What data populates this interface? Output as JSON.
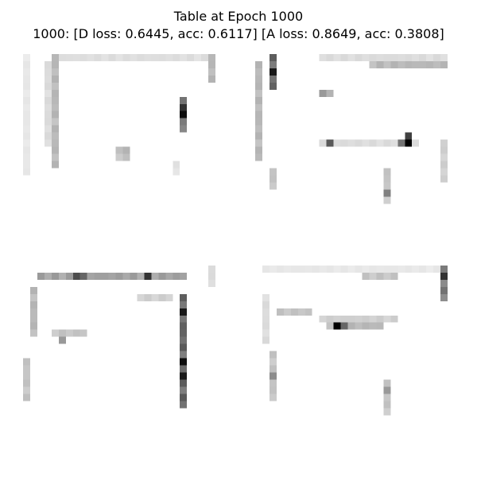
{
  "figure": {
    "title": "Table at Epoch 1000",
    "subtitle": "1000: [D loss: 0.6445, acc: 0.6117]  [A loss: 0.8649, acc: 0.3808]"
  },
  "colormap": "binary",
  "samples": [
    {
      "strokes": [
        {
          "kind": "h",
          "row": 0,
          "c0": 5,
          "c1": 26,
          "v": 0.14
        },
        {
          "kind": "v",
          "col": 26,
          "r0": 0,
          "r1": 3,
          "v": 0.3
        },
        {
          "kind": "v",
          "col": 4,
          "r0": 0,
          "r1": 15,
          "v": 0.3
        },
        {
          "kind": "v",
          "col": 0,
          "r0": 0,
          "r1": 16,
          "v": 0.1
        },
        {
          "kind": "v",
          "col": 3,
          "r0": 1,
          "r1": 12,
          "v": 0.15
        },
        {
          "kind": "v",
          "col": 22,
          "r0": 6,
          "r1": 10,
          "v": 0.55
        },
        {
          "kind": "p",
          "row": 8,
          "col": 22,
          "v": 0.95
        },
        {
          "kind": "p",
          "row": 7,
          "col": 22,
          "v": 0.8
        },
        {
          "kind": "p",
          "row": 13,
          "col": 13,
          "v": 0.25
        },
        {
          "kind": "p",
          "row": 13,
          "col": 14,
          "v": 0.3
        },
        {
          "kind": "p",
          "row": 14,
          "col": 13,
          "v": 0.2
        },
        {
          "kind": "p",
          "row": 14,
          "col": 14,
          "v": 0.25
        },
        {
          "kind": "p",
          "row": 15,
          "col": 21,
          "v": 0.12
        },
        {
          "kind": "p",
          "row": 16,
          "col": 21,
          "v": 0.1
        }
      ]
    },
    {
      "strokes": [
        {
          "kind": "h",
          "row": 0,
          "c0": 9,
          "c1": 26,
          "v": 0.15
        },
        {
          "kind": "h",
          "row": 1,
          "c0": 16,
          "c1": 26,
          "v": 0.3
        },
        {
          "kind": "v",
          "col": 2,
          "r0": 0,
          "r1": 4,
          "v": 0.65
        },
        {
          "kind": "p",
          "row": 2,
          "col": 2,
          "v": 0.9
        },
        {
          "kind": "v",
          "col": 0,
          "r0": 1,
          "r1": 14,
          "v": 0.3
        },
        {
          "kind": "v",
          "col": 26,
          "r0": 12,
          "r1": 17,
          "v": 0.2
        },
        {
          "kind": "p",
          "row": 5,
          "col": 9,
          "v": 0.4
        },
        {
          "kind": "p",
          "row": 5,
          "col": 10,
          "v": 0.3
        },
        {
          "kind": "h",
          "row": 12,
          "c0": 9,
          "c1": 22,
          "v": 0.15
        },
        {
          "kind": "p",
          "row": 12,
          "col": 10,
          "v": 0.65
        },
        {
          "kind": "p",
          "row": 12,
          "col": 20,
          "v": 0.55
        },
        {
          "kind": "p",
          "row": 11,
          "col": 21,
          "v": 0.75
        },
        {
          "kind": "p",
          "row": 12,
          "col": 21,
          "v": 1.0
        },
        {
          "kind": "v",
          "col": 18,
          "r0": 16,
          "r1": 20,
          "v": 0.25
        },
        {
          "kind": "p",
          "row": 19,
          "col": 18,
          "v": 0.5
        },
        {
          "kind": "v",
          "col": 2,
          "r0": 16,
          "r1": 18,
          "v": 0.25
        }
      ]
    },
    {
      "strokes": [
        {
          "kind": "h",
          "row": 1,
          "c0": 2,
          "c1": 22,
          "v": 0.4
        },
        {
          "kind": "p",
          "row": 1,
          "col": 7,
          "v": 0.7
        },
        {
          "kind": "p",
          "row": 1,
          "col": 8,
          "v": 0.6
        },
        {
          "kind": "p",
          "row": 1,
          "col": 17,
          "v": 0.8
        },
        {
          "kind": "v",
          "col": 22,
          "r0": 4,
          "r1": 19,
          "v": 0.65
        },
        {
          "kind": "p",
          "row": 6,
          "col": 22,
          "v": 0.9
        },
        {
          "kind": "p",
          "row": 13,
          "col": 22,
          "v": 0.95
        },
        {
          "kind": "p",
          "row": 15,
          "col": 22,
          "v": 0.9
        },
        {
          "kind": "v",
          "col": 1,
          "r0": 3,
          "r1": 9,
          "v": 0.3
        },
        {
          "kind": "v",
          "col": 0,
          "r0": 13,
          "r1": 18,
          "v": 0.25
        },
        {
          "kind": "h",
          "row": 9,
          "c0": 4,
          "c1": 8,
          "v": 0.25
        },
        {
          "kind": "p",
          "row": 10,
          "col": 5,
          "v": 0.4
        },
        {
          "kind": "h",
          "row": 4,
          "c0": 16,
          "c1": 20,
          "v": 0.2
        },
        {
          "kind": "v",
          "col": 26,
          "r0": 0,
          "r1": 2,
          "v": 0.15
        }
      ]
    },
    {
      "strokes": [
        {
          "kind": "h",
          "row": 0,
          "c0": 1,
          "c1": 26,
          "v": 0.1
        },
        {
          "kind": "h",
          "row": 1,
          "c0": 15,
          "c1": 19,
          "v": 0.25
        },
        {
          "kind": "v",
          "col": 26,
          "r0": 0,
          "r1": 4,
          "v": 0.55
        },
        {
          "kind": "p",
          "row": 1,
          "col": 26,
          "v": 0.8
        },
        {
          "kind": "h",
          "row": 6,
          "c0": 3,
          "c1": 7,
          "v": 0.25
        },
        {
          "kind": "h",
          "row": 7,
          "c0": 9,
          "c1": 19,
          "v": 0.2
        },
        {
          "kind": "h",
          "row": 8,
          "c0": 10,
          "c1": 17,
          "v": 0.3
        },
        {
          "kind": "p",
          "row": 8,
          "col": 11,
          "v": 1.0
        },
        {
          "kind": "p",
          "row": 8,
          "col": 12,
          "v": 0.6
        },
        {
          "kind": "v",
          "col": 1,
          "r0": 4,
          "r1": 10,
          "v": 0.15
        },
        {
          "kind": "v",
          "col": 2,
          "r0": 12,
          "r1": 18,
          "v": 0.25
        },
        {
          "kind": "p",
          "row": 15,
          "col": 2,
          "v": 0.45
        },
        {
          "kind": "v",
          "col": 18,
          "r0": 16,
          "r1": 20,
          "v": 0.25
        },
        {
          "kind": "p",
          "row": 17,
          "col": 18,
          "v": 0.4
        }
      ]
    }
  ]
}
